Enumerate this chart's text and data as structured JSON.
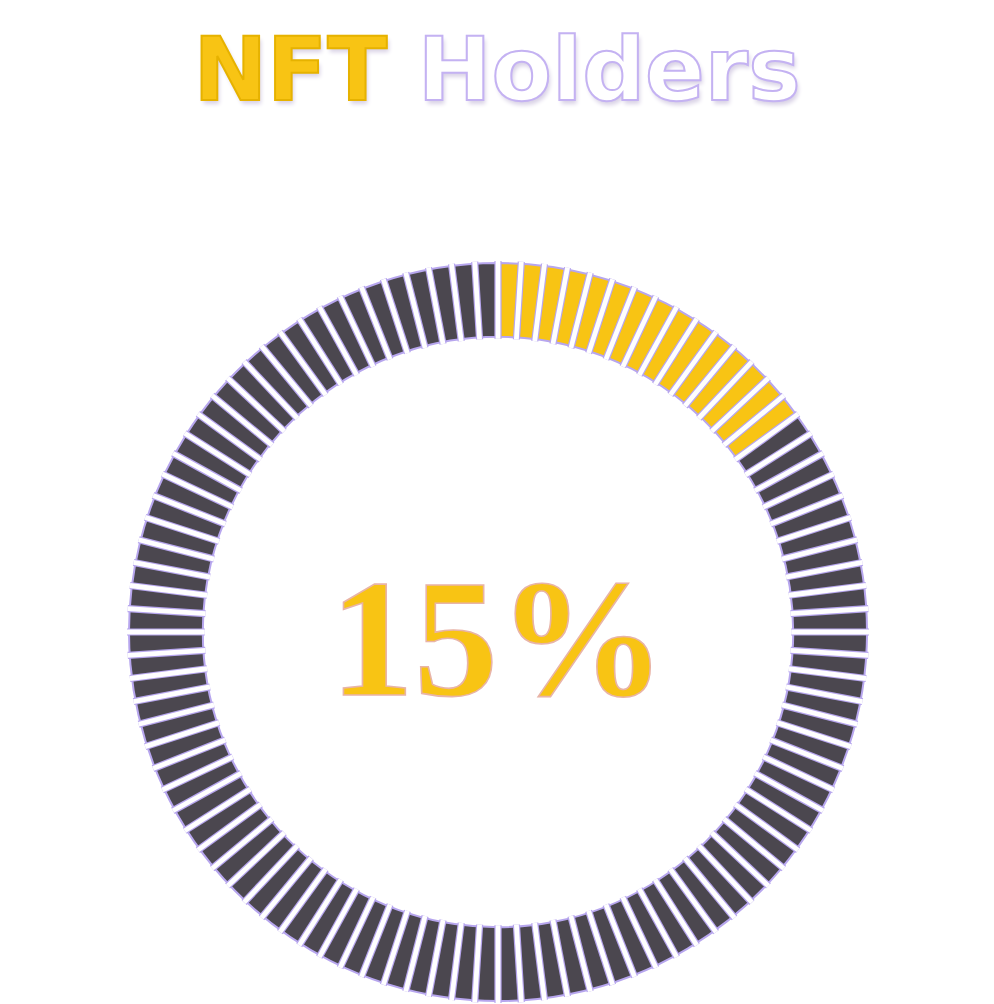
{
  "chart_data": {
    "type": "donut",
    "title": "NFT Holders",
    "categories": [
      null,
      null
    ],
    "values": [
      15,
      85
    ],
    "colors": [
      "#f8c414",
      "#4b474f"
    ],
    "annotations": [
      "15%"
    ]
  }
}
